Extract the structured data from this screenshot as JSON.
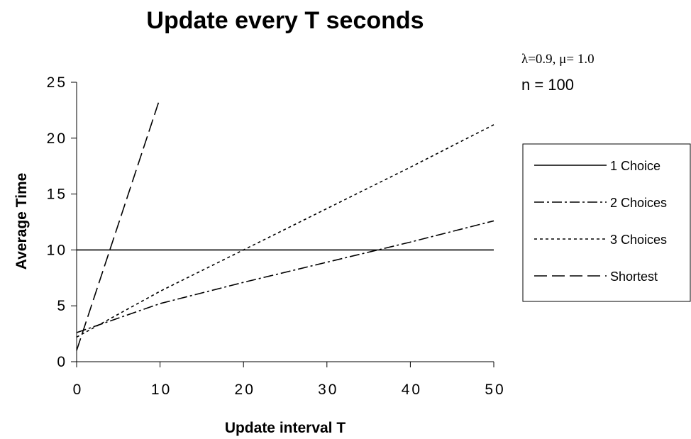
{
  "chart_data": {
    "type": "line",
    "title": "Update every T seconds",
    "xlabel": "Update interval T",
    "ylabel": "Average Time",
    "xlim": [
      0,
      50
    ],
    "ylim": [
      0,
      25
    ],
    "x_ticks": [
      0,
      10,
      20,
      30,
      40,
      50
    ],
    "y_ticks": [
      0,
      5,
      10,
      15,
      20,
      25
    ],
    "grid": false,
    "legend_position": "right",
    "annotations": [
      "λ=0.9, μ= 1.0",
      "n = 100"
    ],
    "series": [
      {
        "name": "1 Choice",
        "dash": "solid",
        "x": [
          0,
          50
        ],
        "y": [
          10,
          10
        ]
      },
      {
        "name": "2 Choices",
        "dash": "dash-dot",
        "x": [
          0,
          10,
          20,
          30,
          40,
          50
        ],
        "y": [
          2.6,
          5.2,
          7.1,
          8.9,
          10.7,
          12.6
        ]
      },
      {
        "name": "3 Choices",
        "dash": "dotted",
        "x": [
          0,
          10,
          20,
          30,
          40,
          50
        ],
        "y": [
          2.2,
          6.3,
          10.0,
          13.7,
          17.4,
          21.2
        ]
      },
      {
        "name": "Shortest",
        "dash": "dashed",
        "x": [
          0,
          10
        ],
        "y": [
          1.0,
          23.6
        ]
      }
    ]
  }
}
